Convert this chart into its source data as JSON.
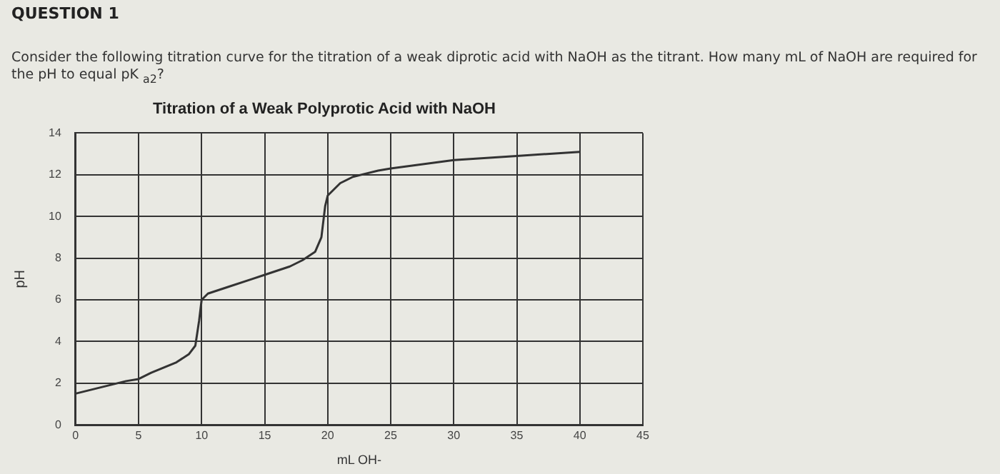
{
  "chart_data": {
    "type": "line",
    "title": "Titration of a Weak Polyprotic Acid with NaOH",
    "xlabel": "mL OH-",
    "ylabel": "pH",
    "annotations": [
      "QUESTION 1",
      "Consider the following titration curve for the titration of a weak diprotic acid with NaOH as the titrant. How many mL of NaOH are required for the pH to equal pK $_{a2}$?"
    ],
    "x": [
      0,
      2,
      4,
      5,
      6,
      8,
      9,
      9.5,
      9.8,
      10,
      10.5,
      12,
      14,
      15,
      17,
      18,
      19,
      19.5,
      19.8,
      20,
      21,
      22,
      24,
      25,
      30,
      35,
      40
    ],
    "series": [
      {
        "color": "#333333",
        "values": [
          1.5,
          1.8,
          2.1,
          2.2,
          2.5,
          3.0,
          3.4,
          3.8,
          5.0,
          6.0,
          6.3,
          6.6,
          7.0,
          7.2,
          7.6,
          7.9,
          8.3,
          9.0,
          10.5,
          11.0,
          11.6,
          11.9,
          12.2,
          12.3,
          12.7,
          12.9,
          13.1
        ]
      }
    ],
    "xlim": [
      0,
      45
    ],
    "xticks": [
      0,
      5,
      10,
      15,
      20,
      25,
      30,
      35,
      40,
      45
    ],
    "ylim": [
      0,
      14
    ],
    "yticks": [
      0,
      2,
      4,
      6,
      8,
      10,
      12,
      14
    ],
    "grid": true,
    "legend": false,
    "marker": "none",
    "line_style": "solid"
  }
}
